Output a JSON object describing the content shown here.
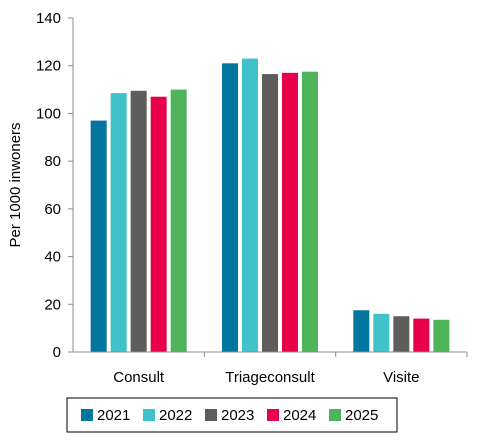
{
  "chart_data": {
    "type": "bar",
    "categories": [
      "Consult",
      "Triageconsult",
      "Visite"
    ],
    "series": [
      {
        "name": "2021",
        "color": "#00759e",
        "values": [
          97,
          121,
          17.5
        ]
      },
      {
        "name": "2022",
        "color": "#3fc2c9",
        "values": [
          108.5,
          123,
          16
        ]
      },
      {
        "name": "2023",
        "color": "#5f5d5b",
        "values": [
          109.5,
          116.5,
          15
        ]
      },
      {
        "name": "2024",
        "color": "#e8004a",
        "values": [
          107,
          117,
          14
        ]
      },
      {
        "name": "2025",
        "color": "#4fb35a",
        "values": [
          110,
          117.5,
          13.5
        ]
      }
    ],
    "title": "",
    "xlabel": "",
    "ylabel": "Per 1000 inwoners",
    "ylim": [
      0,
      140
    ],
    "yticks": [
      0,
      20,
      40,
      60,
      80,
      100,
      120,
      140
    ],
    "grid": false,
    "legend": "bottom"
  }
}
